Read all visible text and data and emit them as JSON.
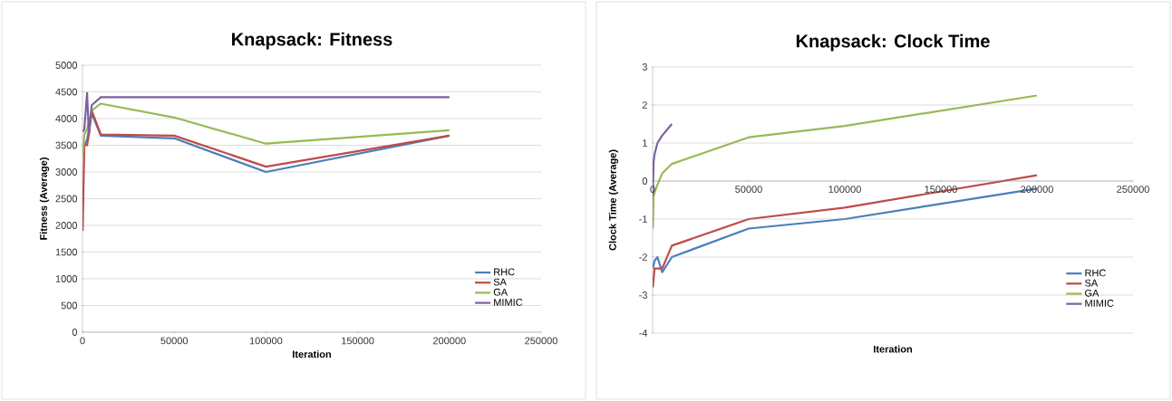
{
  "chart_data": [
    {
      "type": "line",
      "title": "Knapsack: Fitness",
      "xlabel": "Iteration",
      "ylabel": "Fitness (Average)",
      "xlim": [
        0,
        250000
      ],
      "ylim": [
        0,
        5000
      ],
      "xticks": [
        0,
        50000,
        100000,
        150000,
        200000,
        250000
      ],
      "yticks": [
        0,
        500,
        1000,
        1500,
        2000,
        2500,
        3000,
        3500,
        4000,
        4500,
        5000
      ],
      "grid": "y",
      "legend": "bottom right",
      "marker": "none",
      "line_style": "solid",
      "series": [
        {
          "name": "RHC",
          "color": "#4a7ebb",
          "x": [
            1000,
            2500,
            5000,
            10000,
            50000,
            100000,
            200000
          ],
          "values": [
            3500,
            3600,
            4100,
            3680,
            3630,
            3000,
            3680
          ]
        },
        {
          "name": "SA",
          "color": "#be4b48",
          "x": [
            100,
            1000,
            2500,
            3500,
            5000,
            10000,
            50000,
            100000,
            200000
          ],
          "values": [
            1900,
            3500,
            3500,
            3700,
            4150,
            3700,
            3680,
            3100,
            3680
          ]
        },
        {
          "name": "GA",
          "color": "#98b954",
          "x": [
            100,
            1000,
            2500,
            5000,
            10000,
            50000,
            100000,
            200000
          ],
          "values": [
            3300,
            3700,
            3800,
            4150,
            4280,
            4020,
            3530,
            3780
          ]
        },
        {
          "name": "MIMIC",
          "color": "#7d60a0",
          "x": [
            100,
            1000,
            2500,
            3500,
            5000,
            10000,
            200000
          ],
          "values": [
            3750,
            3800,
            4480,
            3700,
            4250,
            4400,
            4400
          ]
        }
      ]
    },
    {
      "type": "line",
      "title": "Knapsack: Clock Time",
      "xlabel": "Iteration",
      "ylabel": "Clock Time (Average)",
      "xlim": [
        0,
        250000
      ],
      "ylim": [
        -4,
        3
      ],
      "xticks": [
        0,
        50000,
        100000,
        150000,
        200000,
        250000
      ],
      "yticks": [
        -4,
        -3,
        -2,
        -1,
        0,
        1,
        2,
        3
      ],
      "grid": "y",
      "legend": "bottom right",
      "marker": "none",
      "line_style": "solid",
      "series": [
        {
          "name": "RHC",
          "color": "#4a7ebb",
          "x": [
            100,
            1000,
            2500,
            5000,
            10000,
            50000,
            100000,
            200000
          ],
          "values": [
            -2.3,
            -2.1,
            -2.0,
            -2.4,
            -2.0,
            -1.25,
            -1.0,
            -0.2
          ]
        },
        {
          "name": "SA",
          "color": "#be4b48",
          "x": [
            100,
            1000,
            2500,
            5000,
            10000,
            50000,
            100000,
            200000
          ],
          "values": [
            -2.8,
            -2.3,
            -2.3,
            -2.3,
            -1.7,
            -1.0,
            -0.7,
            0.15
          ]
        },
        {
          "name": "GA",
          "color": "#98b954",
          "x": [
            100,
            500,
            1000,
            2500,
            5000,
            10000,
            50000,
            100000,
            200000
          ],
          "values": [
            -1.25,
            -0.4,
            -0.3,
            -0.1,
            0.2,
            0.45,
            1.15,
            1.45,
            2.25
          ]
        },
        {
          "name": "MIMIC",
          "color": "#7d60a0",
          "x": [
            100,
            500,
            1000,
            2500,
            5000,
            10000
          ],
          "values": [
            -0.4,
            0.5,
            0.7,
            1.0,
            1.2,
            1.5
          ]
        }
      ]
    }
  ]
}
